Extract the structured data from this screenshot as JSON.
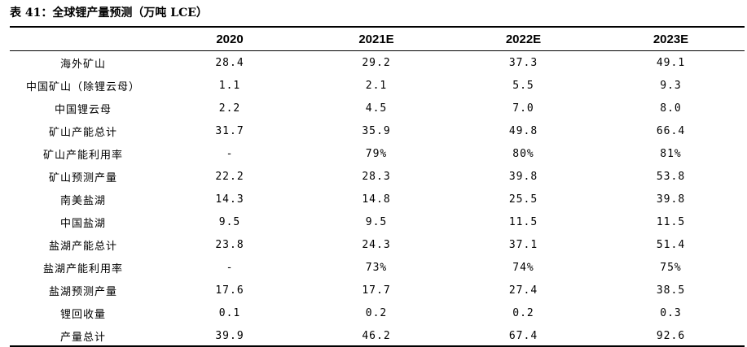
{
  "title": "表 41：全球锂产量预测（万吨 LCE）",
  "table": {
    "headers": [
      "",
      "2020",
      "2021E",
      "2022E",
      "2023E"
    ],
    "rows": [
      {
        "label": "海外矿山",
        "values": [
          "28.4",
          "29.2",
          "37.3",
          "49.1"
        ]
      },
      {
        "label": "中国矿山（除锂云母）",
        "values": [
          "1.1",
          "2.1",
          "5.5",
          "9.3"
        ]
      },
      {
        "label": "中国锂云母",
        "values": [
          "2.2",
          "4.5",
          "7.0",
          "8.0"
        ]
      },
      {
        "label": "矿山产能总计",
        "values": [
          "31.7",
          "35.9",
          "49.8",
          "66.4"
        ]
      },
      {
        "label": "矿山产能利用率",
        "values": [
          "-",
          "79%",
          "80%",
          "81%"
        ]
      },
      {
        "label": "矿山预测产量",
        "values": [
          "22.2",
          "28.3",
          "39.8",
          "53.8"
        ]
      },
      {
        "label": "南美盐湖",
        "values": [
          "14.3",
          "14.8",
          "25.5",
          "39.8"
        ]
      },
      {
        "label": "中国盐湖",
        "values": [
          "9.5",
          "9.5",
          "11.5",
          "11.5"
        ]
      },
      {
        "label": "盐湖产能总计",
        "values": [
          "23.8",
          "24.3",
          "37.1",
          "51.4"
        ]
      },
      {
        "label": "盐湖产能利用率",
        "values": [
          "-",
          "73%",
          "74%",
          "75%"
        ]
      },
      {
        "label": "盐湖预测产量",
        "values": [
          "17.6",
          "17.7",
          "27.4",
          "38.5"
        ]
      },
      {
        "label": "锂回收量",
        "values": [
          "0.1",
          "0.2",
          "0.2",
          "0.3"
        ]
      },
      {
        "label": "产量总计",
        "values": [
          "39.9",
          "46.2",
          "67.4",
          "92.6"
        ]
      }
    ]
  }
}
